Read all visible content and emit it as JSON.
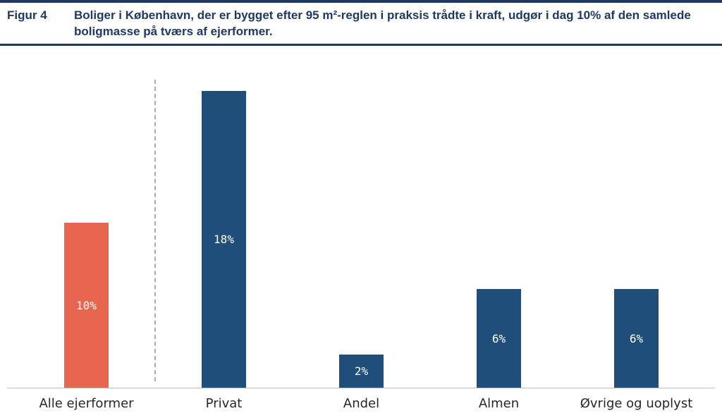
{
  "figure": {
    "label": "Figur 4",
    "title": "Boliger i København, der er bygget efter 95 m²-reglen i praksis trådte i kraft, udgør i dag 10% af den samlede boligmasse på tværs af ejerformer."
  },
  "chart_data": {
    "type": "bar",
    "title": "",
    "categories": [
      "Alle ejerformer",
      "Privat",
      "Andel",
      "Almen",
      "Øvrige og uoplyst"
    ],
    "values": [
      10,
      18,
      2,
      6,
      6
    ],
    "value_labels": [
      "10%",
      "18%",
      "2%",
      "6%",
      "6%"
    ],
    "bar_colors": [
      "#E8664F",
      "#1F4E7A",
      "#1F4E7A",
      "#1F4E7A",
      "#1F4E7A"
    ],
    "xlabel": "",
    "ylabel": "",
    "ylim": [
      0,
      19
    ],
    "grid": false,
    "legend": false,
    "separator": {
      "style": "dashed",
      "after_category": "Alle ejerformer"
    }
  },
  "colors": {
    "header_navy": "#1F3864",
    "bar_blue": "#1F4E7A",
    "bar_red": "#E8664F",
    "axis_line": "#BFBFBF",
    "separator_line": "#ABABAB",
    "category_text": "#262626"
  }
}
